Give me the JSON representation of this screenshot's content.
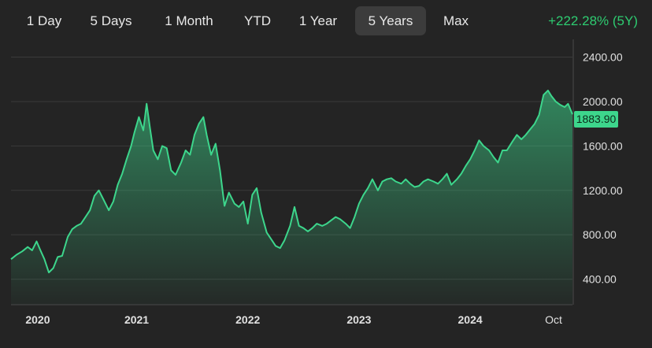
{
  "range_tabs": [
    {
      "label": "1 Day",
      "active": false
    },
    {
      "label": "5 Days",
      "active": false
    },
    {
      "label": "1 Month",
      "active": false
    },
    {
      "label": "YTD",
      "active": false
    },
    {
      "label": "1 Year",
      "active": false
    },
    {
      "label": "5 Years",
      "active": true
    },
    {
      "label": "Max",
      "active": false
    }
  ],
  "change": {
    "percent": "+222.28%",
    "period": "(5Y)"
  },
  "current_price": "1883.90",
  "colors": {
    "line": "#3dd68c",
    "positive": "#2ecc71",
    "background": "#242424",
    "grid": "#3a3a3a"
  },
  "chart_data": {
    "type": "area",
    "ylim": [
      170,
      2560
    ],
    "y_ticks": [
      400,
      800,
      1200,
      1600,
      2000,
      2400
    ],
    "y_tick_labels": [
      "400.00",
      "800.00",
      "1200.00",
      "1600.00",
      "2000.00",
      "2400.00"
    ],
    "x_tick_labels": [
      {
        "label": "2020",
        "t": 2020.0
      },
      {
        "label": "2021",
        "t": 2021.0
      },
      {
        "label": "2022",
        "t": 2022.0
      },
      {
        "label": "2023",
        "t": 2023.0
      },
      {
        "label": "2024",
        "t": 2024.0
      },
      {
        "label": "Oct",
        "t": 2024.75
      }
    ],
    "x_range": [
      2019.87,
      2024.92
    ],
    "grid": true,
    "last_value": 1883.9,
    "series": [
      {
        "points": [
          [
            2019.87,
            580
          ],
          [
            2019.92,
            620
          ],
          [
            2019.97,
            650
          ],
          [
            2020.02,
            690
          ],
          [
            2020.06,
            660
          ],
          [
            2020.1,
            740
          ],
          [
            2020.13,
            670
          ],
          [
            2020.17,
            580
          ],
          [
            2020.21,
            460
          ],
          [
            2020.25,
            500
          ],
          [
            2020.29,
            600
          ],
          [
            2020.33,
            610
          ],
          [
            2020.38,
            780
          ],
          [
            2020.42,
            850
          ],
          [
            2020.46,
            880
          ],
          [
            2020.5,
            900
          ],
          [
            2020.54,
            960
          ],
          [
            2020.58,
            1020
          ],
          [
            2020.62,
            1150
          ],
          [
            2020.66,
            1200
          ],
          [
            2020.7,
            1120
          ],
          [
            2020.75,
            1020
          ],
          [
            2020.79,
            1100
          ],
          [
            2020.83,
            1250
          ],
          [
            2020.87,
            1350
          ],
          [
            2020.91,
            1480
          ],
          [
            2020.95,
            1600
          ],
          [
            2020.98,
            1720
          ],
          [
            2021.02,
            1860
          ],
          [
            2021.06,
            1740
          ],
          [
            2021.09,
            1980
          ],
          [
            2021.12,
            1760
          ],
          [
            2021.15,
            1560
          ],
          [
            2021.19,
            1480
          ],
          [
            2021.23,
            1600
          ],
          [
            2021.27,
            1580
          ],
          [
            2021.31,
            1380
          ],
          [
            2021.35,
            1340
          ],
          [
            2021.4,
            1450
          ],
          [
            2021.44,
            1560
          ],
          [
            2021.48,
            1520
          ],
          [
            2021.52,
            1700
          ],
          [
            2021.56,
            1800
          ],
          [
            2021.6,
            1860
          ],
          [
            2021.63,
            1700
          ],
          [
            2021.67,
            1520
          ],
          [
            2021.71,
            1620
          ],
          [
            2021.75,
            1380
          ],
          [
            2021.79,
            1060
          ],
          [
            2021.83,
            1180
          ],
          [
            2021.88,
            1080
          ],
          [
            2021.92,
            1050
          ],
          [
            2021.96,
            1100
          ],
          [
            2022.0,
            900
          ],
          [
            2022.04,
            1160
          ],
          [
            2022.08,
            1220
          ],
          [
            2022.12,
            1000
          ],
          [
            2022.17,
            820
          ],
          [
            2022.21,
            760
          ],
          [
            2022.25,
            700
          ],
          [
            2022.29,
            680
          ],
          [
            2022.33,
            750
          ],
          [
            2022.38,
            880
          ],
          [
            2022.42,
            1050
          ],
          [
            2022.46,
            880
          ],
          [
            2022.5,
            860
          ],
          [
            2022.54,
            830
          ],
          [
            2022.58,
            860
          ],
          [
            2022.62,
            900
          ],
          [
            2022.67,
            880
          ],
          [
            2022.71,
            900
          ],
          [
            2022.75,
            930
          ],
          [
            2022.79,
            960
          ],
          [
            2022.83,
            940
          ],
          [
            2022.88,
            900
          ],
          [
            2022.92,
            860
          ],
          [
            2022.96,
            960
          ],
          [
            2023.0,
            1080
          ],
          [
            2023.04,
            1160
          ],
          [
            2023.08,
            1220
          ],
          [
            2023.12,
            1300
          ],
          [
            2023.17,
            1200
          ],
          [
            2023.21,
            1280
          ],
          [
            2023.25,
            1300
          ],
          [
            2023.29,
            1310
          ],
          [
            2023.33,
            1280
          ],
          [
            2023.38,
            1260
          ],
          [
            2023.42,
            1300
          ],
          [
            2023.46,
            1260
          ],
          [
            2023.5,
            1230
          ],
          [
            2023.54,
            1240
          ],
          [
            2023.58,
            1280
          ],
          [
            2023.62,
            1300
          ],
          [
            2023.67,
            1280
          ],
          [
            2023.71,
            1260
          ],
          [
            2023.75,
            1300
          ],
          [
            2023.79,
            1350
          ],
          [
            2023.83,
            1250
          ],
          [
            2023.88,
            1300
          ],
          [
            2023.92,
            1350
          ],
          [
            2023.96,
            1420
          ],
          [
            2024.0,
            1480
          ],
          [
            2024.04,
            1560
          ],
          [
            2024.08,
            1650
          ],
          [
            2024.12,
            1600
          ],
          [
            2024.17,
            1560
          ],
          [
            2024.21,
            1500
          ],
          [
            2024.25,
            1450
          ],
          [
            2024.29,
            1560
          ],
          [
            2024.33,
            1560
          ],
          [
            2024.38,
            1640
          ],
          [
            2024.42,
            1700
          ],
          [
            2024.46,
            1660
          ],
          [
            2024.5,
            1700
          ],
          [
            2024.54,
            1750
          ],
          [
            2024.58,
            1800
          ],
          [
            2024.62,
            1880
          ],
          [
            2024.66,
            2060
          ],
          [
            2024.7,
            2100
          ],
          [
            2024.73,
            2050
          ],
          [
            2024.77,
            2000
          ],
          [
            2024.81,
            1970
          ],
          [
            2024.85,
            1950
          ],
          [
            2024.88,
            1980
          ],
          [
            2024.92,
            1883.9
          ]
        ]
      }
    ]
  }
}
